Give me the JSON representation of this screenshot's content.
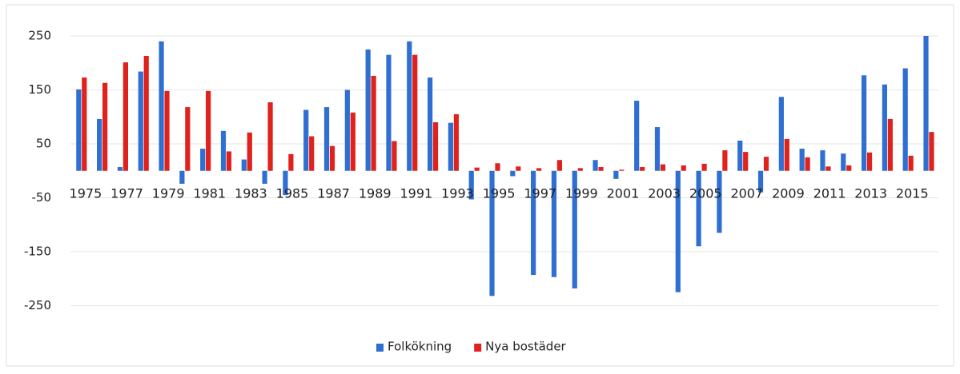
{
  "chart_data": {
    "type": "bar",
    "categories": [
      "1975",
      null,
      "1977",
      null,
      "1979",
      null,
      "1981",
      null,
      "1983",
      null,
      "1985",
      null,
      "1987",
      null,
      "1989",
      null,
      "1991",
      null,
      "1993",
      null,
      "1995",
      null,
      "1997",
      null,
      "1999",
      null,
      "2001",
      null,
      "2003",
      null,
      "2005",
      null,
      "2007",
      null,
      "2009",
      null,
      "2011",
      null,
      "2013",
      null,
      "2015",
      null
    ],
    "series": [
      {
        "name": "Folkökning",
        "color": "#2f6fd1",
        "values": [
          151,
          96,
          7,
          184,
          240,
          -24,
          41,
          74,
          21,
          -24,
          -45,
          113,
          118,
          150,
          225,
          215,
          240,
          173,
          89,
          -53,
          -232,
          -10,
          -193,
          -197,
          -218,
          20,
          -15,
          130,
          81,
          -225,
          -140,
          -115,
          56,
          -40,
          137,
          41,
          38,
          32,
          177,
          160,
          190,
          250
        ]
      },
      {
        "name": "Nya bostäder",
        "color": "#e0211c",
        "values": [
          173,
          163,
          201,
          213,
          148,
          118,
          148,
          36,
          71,
          127,
          31,
          64,
          46,
          108,
          176,
          55,
          215,
          90,
          105,
          6,
          14,
          8,
          5,
          20,
          5,
          7,
          2,
          7,
          12,
          10,
          13,
          38,
          35,
          26,
          59,
          25,
          8,
          10,
          34,
          96,
          28,
          72
        ]
      }
    ],
    "ylim": [
      -270,
      287
    ],
    "yticks": [
      250,
      150,
      50,
      -50,
      -150,
      -250
    ],
    "grid": true,
    "legend": "bottom"
  }
}
